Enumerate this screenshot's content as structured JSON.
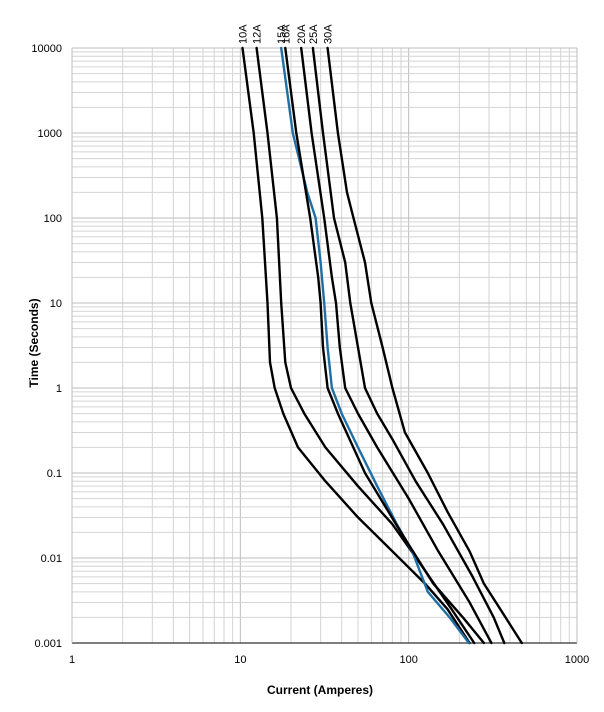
{
  "chart_data": {
    "type": "line",
    "title": "",
    "xlabel": "Current  (Amperes)",
    "ylabel": "Time (Seconds)",
    "xscale": "log",
    "yscale": "log",
    "xlim": [
      1,
      1000
    ],
    "ylim": [
      0.001,
      10000
    ],
    "grid": true,
    "legend": "curve labels above plot, rotated",
    "x_ticks": [
      "1",
      "10",
      "100",
      "1000"
    ],
    "y_ticks": [
      "0.001",
      "0.01",
      "0.1",
      "1",
      "10",
      "100",
      "1000",
      "10000"
    ],
    "series": [
      {
        "name": "10A",
        "color": "#000000",
        "points": [
          [
            10.3,
            10000
          ],
          [
            12,
            1000
          ],
          [
            13.5,
            100
          ],
          [
            14.5,
            10
          ],
          [
            15,
            2
          ],
          [
            16,
            1
          ],
          [
            18,
            0.5
          ],
          [
            22,
            0.2
          ],
          [
            32,
            0.08
          ],
          [
            50,
            0.03
          ],
          [
            80,
            0.012
          ],
          [
            125,
            0.005
          ],
          [
            170,
            0.0025
          ],
          [
            230,
            0.001
          ]
        ]
      },
      {
        "name": "12A",
        "color": "#000000",
        "points": [
          [
            12.5,
            10000
          ],
          [
            14.5,
            1000
          ],
          [
            16.5,
            100
          ],
          [
            17.5,
            10
          ],
          [
            18.5,
            2
          ],
          [
            20,
            1
          ],
          [
            24,
            0.5
          ],
          [
            32,
            0.2
          ],
          [
            50,
            0.07
          ],
          [
            80,
            0.025
          ],
          [
            120,
            0.008
          ],
          [
            180,
            0.0025
          ],
          [
            245,
            0.001
          ]
        ]
      },
      {
        "name": "15A",
        "color": "#1f6fa5",
        "points": [
          [
            17.5,
            10000
          ],
          [
            20.5,
            1000
          ],
          [
            25,
            200
          ],
          [
            28,
            100
          ],
          [
            30,
            30
          ],
          [
            31.5,
            10
          ],
          [
            33,
            3
          ],
          [
            35,
            1
          ],
          [
            40,
            0.5
          ],
          [
            50,
            0.2
          ],
          [
            65,
            0.07
          ],
          [
            85,
            0.025
          ],
          [
            105,
            0.012
          ],
          [
            130,
            0.004
          ],
          [
            175,
            0.002
          ],
          [
            228,
            0.001
          ]
        ]
      },
      {
        "name": "16A",
        "color": "#000000",
        "points": [
          [
            18.5,
            10000
          ],
          [
            21.5,
            1000
          ],
          [
            26,
            100
          ],
          [
            29,
            20
          ],
          [
            30,
            10
          ],
          [
            31,
            3
          ],
          [
            33,
            1
          ],
          [
            38,
            0.5
          ],
          [
            55,
            0.1
          ],
          [
            90,
            0.02
          ],
          [
            140,
            0.005
          ],
          [
            210,
            0.002
          ],
          [
            280,
            0.001
          ]
        ]
      },
      {
        "name": "20A",
        "color": "#000000",
        "points": [
          [
            23,
            10000
          ],
          [
            26.5,
            1000
          ],
          [
            31.5,
            100
          ],
          [
            35,
            20
          ],
          [
            37,
            10
          ],
          [
            39,
            3
          ],
          [
            42,
            1
          ],
          [
            50,
            0.5
          ],
          [
            65,
            0.2
          ],
          [
            100,
            0.05
          ],
          [
            150,
            0.012
          ],
          [
            230,
            0.003
          ],
          [
            310,
            0.001
          ]
        ]
      },
      {
        "name": "25A",
        "color": "#000000",
        "points": [
          [
            27,
            10000
          ],
          [
            31,
            1000
          ],
          [
            36,
            100
          ],
          [
            42,
            30
          ],
          [
            45,
            10
          ],
          [
            50,
            3
          ],
          [
            55,
            1
          ],
          [
            65,
            0.5
          ],
          [
            80,
            0.25
          ],
          [
            110,
            0.08
          ],
          [
            160,
            0.025
          ],
          [
            240,
            0.006
          ],
          [
            320,
            0.002
          ],
          [
            370,
            0.001
          ]
        ]
      },
      {
        "name": "30A",
        "color": "#000000",
        "points": [
          [
            33,
            10000
          ],
          [
            38,
            1000
          ],
          [
            43,
            200
          ],
          [
            47,
            100
          ],
          [
            55,
            30
          ],
          [
            60,
            10
          ],
          [
            70,
            3
          ],
          [
            80,
            1
          ],
          [
            95,
            0.3
          ],
          [
            130,
            0.1
          ],
          [
            170,
            0.035
          ],
          [
            230,
            0.012
          ],
          [
            280,
            0.005
          ],
          [
            350,
            0.0025
          ],
          [
            470,
            0.001
          ]
        ]
      }
    ]
  }
}
